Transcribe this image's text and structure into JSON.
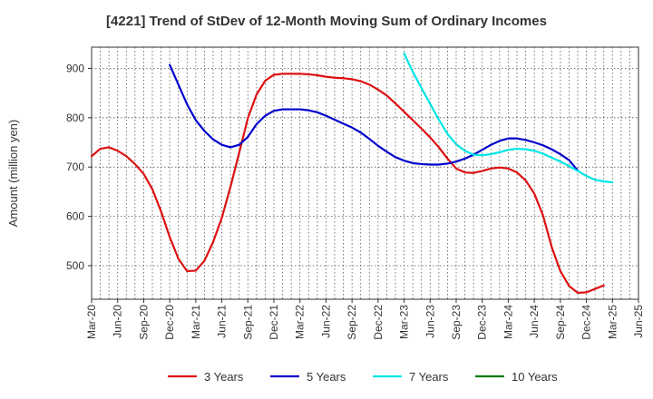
{
  "chart_data": {
    "type": "line",
    "title": "[4221]  Trend of StDev of 12-Month Moving Sum of Ordinary Incomes",
    "ylabel": "Amount (million yen)",
    "xlabel": "",
    "ylim": [
      432,
      943
    ],
    "xlim": [
      0,
      63
    ],
    "y_ticks": [
      500,
      600,
      700,
      800,
      900
    ],
    "x_ticks": [
      {
        "i": 0,
        "label": "Mar-20"
      },
      {
        "i": 3,
        "label": "Jun-20"
      },
      {
        "i": 6,
        "label": "Sep-20"
      },
      {
        "i": 9,
        "label": "Dec-20"
      },
      {
        "i": 12,
        "label": "Mar-21"
      },
      {
        "i": 15,
        "label": "Jun-21"
      },
      {
        "i": 18,
        "label": "Sep-21"
      },
      {
        "i": 21,
        "label": "Dec-21"
      },
      {
        "i": 24,
        "label": "Mar-22"
      },
      {
        "i": 27,
        "label": "Jun-22"
      },
      {
        "i": 30,
        "label": "Sep-22"
      },
      {
        "i": 33,
        "label": "Dec-22"
      },
      {
        "i": 36,
        "label": "Mar-23"
      },
      {
        "i": 39,
        "label": "Jun-23"
      },
      {
        "i": 42,
        "label": "Sep-23"
      },
      {
        "i": 45,
        "label": "Dec-23"
      },
      {
        "i": 48,
        "label": "Mar-24"
      },
      {
        "i": 51,
        "label": "Jun-24"
      },
      {
        "i": 54,
        "label": "Sep-24"
      },
      {
        "i": 57,
        "label": "Dec-24"
      },
      {
        "i": 60,
        "label": "Mar-25"
      },
      {
        "i": 63,
        "label": "Jun-25"
      }
    ],
    "series": [
      {
        "name": "3 Years",
        "color": "#dd1111",
        "start_index": 0,
        "values": [
          722,
          737,
          740,
          733,
          722,
          706,
          686,
          655,
          610,
          558,
          514,
          489,
          490,
          510,
          548,
          597,
          660,
          729,
          799,
          847,
          875,
          887,
          889,
          889,
          889,
          888,
          886,
          883,
          881,
          880,
          878,
          874,
          867,
          857,
          845,
          829,
          812,
          795,
          778,
          760,
          740,
          717,
          697,
          689,
          688,
          692,
          697,
          699,
          697,
          689,
          673,
          646,
          602,
          538,
          489,
          459,
          445,
          446,
          453,
          460
        ]
      },
      {
        "name": "5 Years",
        "color": "#0000cc",
        "start_index": 9,
        "values": [
          907,
          867,
          827,
          795,
          773,
          756,
          745,
          740,
          745,
          761,
          787,
          804,
          814,
          817,
          817,
          817,
          815,
          811,
          804,
          796,
          788,
          780,
          770,
          757,
          743,
          731,
          720,
          713,
          708,
          706,
          705,
          705,
          707,
          711,
          717,
          725,
          735,
          745,
          753,
          758,
          758,
          755,
          750,
          744,
          736,
          726,
          714,
          693
        ]
      },
      {
        "name": "7 Years",
        "color": "#00e5e5",
        "start_index": 36,
        "values": [
          930,
          893,
          860,
          828,
          796,
          767,
          746,
          733,
          725,
          724,
          726,
          730,
          735,
          737,
          736,
          733,
          727,
          719,
          711,
          702,
          692,
          682,
          674,
          671,
          669
        ]
      },
      {
        "name": "10 Years",
        "color": "#007a00",
        "start_index": 0,
        "values": []
      }
    ],
    "legend_position": "bottom-center"
  }
}
